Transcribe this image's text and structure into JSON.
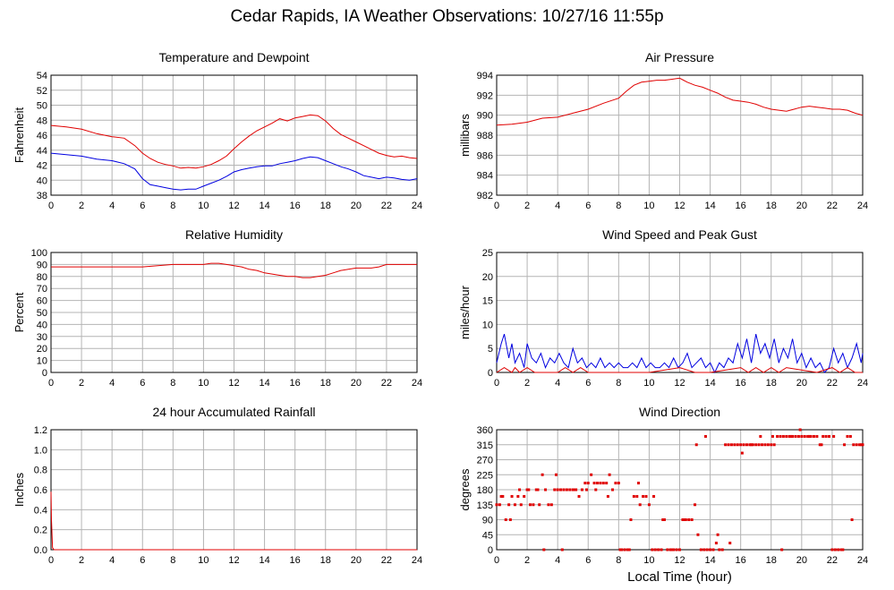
{
  "page": {
    "title": "Cedar Rapids, IA Weather Observations: 10/27/16 11:55p"
  },
  "chart_data": [
    {
      "id": "temperature",
      "type": "line",
      "title": "Temperature and Dewpoint",
      "ylabel": "Fahrenheit",
      "xlabel": "",
      "xlim": [
        0,
        24
      ],
      "ylim": [
        38,
        54
      ],
      "xticks": [
        0,
        2,
        4,
        6,
        8,
        10,
        12,
        14,
        16,
        18,
        20,
        22,
        24
      ],
      "yticks": [
        38,
        40,
        42,
        44,
        46,
        48,
        50,
        52,
        54
      ],
      "grid": true,
      "series": [
        {
          "color": "#e00000",
          "x": [
            0,
            1,
            2,
            3,
            4,
            4.8,
            5.5,
            6,
            6.5,
            7,
            7.5,
            8,
            8.5,
            9,
            9.5,
            10,
            10.5,
            11,
            11.5,
            12,
            12.5,
            13,
            13.5,
            14,
            14.5,
            15,
            15.5,
            16,
            16.5,
            17,
            17.5,
            18,
            18.5,
            19,
            19.5,
            20,
            20.5,
            21,
            21.5,
            22,
            22.5,
            23,
            23.5,
            24
          ],
          "y": [
            47.3,
            47.1,
            46.8,
            46.2,
            45.8,
            45.6,
            44.6,
            43.6,
            42.9,
            42.4,
            42.1,
            41.9,
            41.6,
            41.7,
            41.6,
            41.8,
            42.1,
            42.6,
            43.2,
            44.2,
            45.1,
            45.9,
            46.6,
            47.1,
            47.6,
            48.2,
            47.9,
            48.3,
            48.5,
            48.7,
            48.6,
            47.9,
            46.9,
            46.1,
            45.6,
            45.1,
            44.6,
            44.1,
            43.6,
            43.3,
            43.1,
            43.2,
            43.0,
            42.9
          ]
        },
        {
          "color": "#0000e0",
          "x": [
            0,
            1,
            2,
            3,
            4,
            4.8,
            5.5,
            6,
            6.5,
            7,
            7.5,
            8,
            8.5,
            9,
            9.5,
            10,
            10.5,
            11,
            11.5,
            12,
            12.5,
            13,
            13.5,
            14,
            14.5,
            15,
            15.5,
            16,
            16.5,
            17,
            17.5,
            18,
            18.5,
            19,
            19.5,
            20,
            20.5,
            21,
            21.5,
            22,
            22.5,
            23,
            23.5,
            24
          ],
          "y": [
            43.6,
            43.4,
            43.2,
            42.8,
            42.6,
            42.2,
            41.5,
            40.2,
            39.4,
            39.2,
            39.0,
            38.8,
            38.7,
            38.8,
            38.8,
            39.2,
            39.6,
            40.0,
            40.5,
            41.1,
            41.4,
            41.6,
            41.8,
            41.9,
            41.9,
            42.2,
            42.4,
            42.6,
            42.9,
            43.1,
            43.0,
            42.6,
            42.2,
            41.8,
            41.5,
            41.1,
            40.6,
            40.4,
            40.2,
            40.4,
            40.3,
            40.1,
            40.0,
            40.2
          ]
        }
      ]
    },
    {
      "id": "pressure",
      "type": "line",
      "title": "Air Pressure",
      "ylabel": "millibars",
      "xlabel": "",
      "xlim": [
        0,
        24
      ],
      "ylim": [
        982,
        994
      ],
      "xticks": [
        0,
        2,
        4,
        6,
        8,
        10,
        12,
        14,
        16,
        18,
        20,
        22,
        24
      ],
      "yticks": [
        982,
        984,
        986,
        988,
        990,
        992,
        994
      ],
      "grid": true,
      "series": [
        {
          "color": "#e00000",
          "x": [
            0,
            1,
            2,
            3,
            4,
            5,
            6,
            7,
            8,
            8.5,
            9,
            9.5,
            10,
            10.5,
            11,
            11.5,
            12,
            12.5,
            13,
            13.5,
            14,
            14.5,
            15,
            15.5,
            16,
            16.5,
            17,
            17.5,
            18,
            18.5,
            19,
            19.5,
            20,
            20.5,
            21,
            21.5,
            22,
            22.5,
            23,
            23.5,
            24
          ],
          "y": [
            989.0,
            989.1,
            989.3,
            989.7,
            989.8,
            990.2,
            990.6,
            991.2,
            991.7,
            992.4,
            993.0,
            993.3,
            993.4,
            993.5,
            993.5,
            993.6,
            993.7,
            993.3,
            993.0,
            992.8,
            992.5,
            992.2,
            991.8,
            991.5,
            991.4,
            991.3,
            991.1,
            990.8,
            990.6,
            990.5,
            990.4,
            990.6,
            990.8,
            990.9,
            990.8,
            990.7,
            990.6,
            990.6,
            990.5,
            990.2,
            990.0
          ]
        }
      ]
    },
    {
      "id": "humidity",
      "type": "line",
      "title": "Relative Humidity",
      "ylabel": "Percent",
      "xlabel": "",
      "xlim": [
        0,
        24
      ],
      "ylim": [
        0,
        100
      ],
      "xticks": [
        0,
        2,
        4,
        6,
        8,
        10,
        12,
        14,
        16,
        18,
        20,
        22,
        24
      ],
      "yticks": [
        0,
        10,
        20,
        30,
        40,
        50,
        60,
        70,
        80,
        90,
        100
      ],
      "grid": true,
      "series": [
        {
          "color": "#e00000",
          "x": [
            0,
            1,
            2,
            3,
            4,
            5,
            6,
            7,
            8,
            9,
            10,
            10.5,
            11,
            11.5,
            12,
            12.5,
            13,
            13.5,
            14,
            14.5,
            15,
            15.5,
            16,
            16.5,
            17,
            17.5,
            18,
            18.5,
            19,
            19.5,
            20,
            20.5,
            21,
            21.5,
            22,
            23,
            24
          ],
          "y": [
            88,
            88,
            88,
            88,
            88,
            88,
            88,
            89,
            90,
            90,
            90,
            91,
            91,
            90,
            89,
            88,
            86,
            85,
            83,
            82,
            81,
            80,
            80,
            79,
            79,
            80,
            81,
            83,
            85,
            86,
            87,
            87,
            87,
            88,
            90,
            90,
            90
          ]
        }
      ]
    },
    {
      "id": "wind-speed",
      "type": "line",
      "title": "Wind Speed and Peak Gust",
      "ylabel": "miles/hour",
      "xlabel": "",
      "xlim": [
        0,
        24
      ],
      "ylim": [
        0,
        25
      ],
      "xticks": [
        0,
        2,
        4,
        6,
        8,
        10,
        12,
        14,
        16,
        18,
        20,
        22,
        24
      ],
      "yticks": [
        0,
        5,
        10,
        15,
        20,
        25
      ],
      "grid": true,
      "series": [
        {
          "color": "#0000e0",
          "x": [
            0,
            0.3,
            0.5,
            0.8,
            1,
            1.2,
            1.5,
            1.8,
            2,
            2.3,
            2.6,
            2.9,
            3.2,
            3.5,
            3.8,
            4.1,
            4.4,
            4.7,
            5,
            5.3,
            5.6,
            5.9,
            6.2,
            6.5,
            6.8,
            7.1,
            7.4,
            7.7,
            8,
            8.3,
            8.6,
            8.9,
            9.2,
            9.5,
            9.8,
            10.1,
            10.4,
            10.7,
            11,
            11.3,
            11.6,
            11.9,
            12.2,
            12.5,
            12.8,
            13.1,
            13.4,
            13.7,
            14,
            14.3,
            14.6,
            14.9,
            15.2,
            15.5,
            15.8,
            16.1,
            16.4,
            16.7,
            17,
            17.3,
            17.6,
            17.9,
            18.2,
            18.5,
            18.8,
            19.1,
            19.4,
            19.7,
            20,
            20.3,
            20.6,
            20.9,
            21.2,
            21.5,
            21.8,
            22.1,
            22.4,
            22.7,
            23,
            23.3,
            23.6,
            23.9,
            24
          ],
          "y": [
            2,
            6,
            8,
            3,
            6,
            2,
            4,
            1,
            6,
            3,
            2,
            4,
            1,
            3,
            2,
            4,
            2,
            1,
            5,
            2,
            3,
            1,
            2,
            1,
            3,
            1,
            2,
            1,
            2,
            1,
            1,
            2,
            1,
            3,
            1,
            2,
            1,
            1,
            2,
            1,
            3,
            1,
            2,
            4,
            1,
            2,
            3,
            1,
            2,
            0,
            2,
            1,
            3,
            2,
            6,
            3,
            7,
            2,
            8,
            4,
            6,
            3,
            7,
            2,
            5,
            3,
            7,
            2,
            4,
            1,
            3,
            1,
            2,
            0,
            1,
            5,
            2,
            4,
            1,
            3,
            6,
            2,
            4
          ]
        },
        {
          "color": "#e00000",
          "x": [
            0,
            0.5,
            1,
            1.2,
            1.5,
            2,
            2.5,
            4,
            4.5,
            5,
            5.5,
            6,
            8,
            10,
            12,
            13,
            14,
            16,
            16.5,
            17,
            17.5,
            18,
            18.5,
            19,
            21,
            22,
            22.5,
            23,
            23.5,
            24
          ],
          "y": [
            0,
            1,
            0,
            1,
            0,
            1,
            0,
            0,
            1,
            0,
            1,
            0,
            0,
            0,
            1,
            0,
            0,
            1,
            0,
            1,
            0,
            1,
            0,
            1,
            0,
            1,
            0,
            1,
            0,
            0
          ]
        }
      ]
    },
    {
      "id": "rainfall",
      "type": "line",
      "title": "24 hour Accumulated Rainfall",
      "ylabel": "Inches",
      "xlabel": "",
      "xlim": [
        0,
        24
      ],
      "ylim": [
        0,
        1.2
      ],
      "xticks": [
        0,
        2,
        4,
        6,
        8,
        10,
        12,
        14,
        16,
        18,
        20,
        22,
        24
      ],
      "yticks": [
        0.0,
        0.2,
        0.4,
        0.6,
        0.8,
        1.0,
        1.2
      ],
      "ytick_labels": [
        "0.0",
        "0.2",
        "0.4",
        "0.6",
        "0.8",
        "1.0",
        "1.2"
      ],
      "grid": true,
      "series": [
        {
          "color": "#e00000",
          "x": [
            0,
            0.03,
            0.1,
            0.2,
            24
          ],
          "y": [
            0.58,
            0.3,
            0.02,
            0.0,
            0.0
          ]
        }
      ]
    },
    {
      "id": "wind-direction",
      "type": "scatter",
      "title": "Wind Direction",
      "ylabel": "degrees",
      "xlabel": "Local Time (hour)",
      "xlim": [
        0,
        24
      ],
      "ylim": [
        0,
        360
      ],
      "xticks": [
        0,
        2,
        4,
        6,
        8,
        10,
        12,
        14,
        16,
        18,
        20,
        22,
        24
      ],
      "yticks": [
        0,
        45,
        90,
        135,
        180,
        225,
        270,
        315,
        360
      ],
      "grid": true,
      "series": [
        {
          "color": "#e00000",
          "x": [
            0,
            0.2,
            0.4,
            0.6,
            0.8,
            1.0,
            1.2,
            1.4,
            1.6,
            1.8,
            2.0,
            2.2,
            2.4,
            2.6,
            2.8,
            3.0,
            3.2,
            3.4,
            3.6,
            3.8,
            4.0,
            4.2,
            4.4,
            4.6,
            4.8,
            5.0,
            5.2,
            5.4,
            5.6,
            5.8,
            6.0,
            6.2,
            6.4,
            6.6,
            6.8,
            7.0,
            7.2,
            7.4,
            7.6,
            7.8,
            8.0,
            8.2,
            8.4,
            8.6,
            8.8,
            9.0,
            9.2,
            9.4,
            9.6,
            9.8,
            10.0,
            10.2,
            10.4,
            10.6,
            10.8,
            11.0,
            11.2,
            11.4,
            11.6,
            11.8,
            12.0,
            12.2,
            12.4,
            12.6,
            12.8,
            13.0,
            13.2,
            13.4,
            13.6,
            13.8,
            14.0,
            14.2,
            14.4,
            14.6,
            14.8,
            15.0,
            15.2,
            15.4,
            15.6,
            15.8,
            16.0,
            16.2,
            16.4,
            16.6,
            16.8,
            17.0,
            17.2,
            17.4,
            17.6,
            17.8,
            18.0,
            18.2,
            18.4,
            18.6,
            18.8,
            19.0,
            19.2,
            19.4,
            19.6,
            19.8,
            20.0,
            20.2,
            20.4,
            20.6,
            20.8,
            21.0,
            21.2,
            21.4,
            21.6,
            21.8,
            22.0,
            22.2,
            22.4,
            22.6,
            22.8,
            23.0,
            23.2,
            23.4,
            23.6,
            23.8,
            24.0,
            0.3,
            0.9,
            1.5,
            2.1,
            2.7,
            3.1,
            3.9,
            4.3,
            5.1,
            5.9,
            6.5,
            7.3,
            8.1,
            8.7,
            9.3,
            10.3,
            10.9,
            11.5,
            12.3,
            13.1,
            13.7,
            14.5,
            15.3,
            16.1,
            16.7,
            17.3,
            18.1,
            18.7,
            19.3,
            19.9,
            20.5,
            21.3,
            22.1,
            22.7,
            23.3,
            23.9
          ],
          "y": [
            135,
            135,
            160,
            90,
            135,
            160,
            135,
            160,
            135,
            160,
            180,
            135,
            135,
            180,
            135,
            225,
            180,
            135,
            135,
            180,
            180,
            180,
            180,
            180,
            180,
            180,
            180,
            160,
            180,
            200,
            200,
            225,
            200,
            200,
            200,
            200,
            200,
            225,
            180,
            200,
            200,
            0,
            0,
            0,
            90,
            160,
            160,
            135,
            160,
            160,
            135,
            0,
            0,
            0,
            0,
            90,
            0,
            0,
            0,
            0,
            0,
            90,
            90,
            90,
            90,
            135,
            45,
            0,
            0,
            0,
            0,
            0,
            20,
            0,
            0,
            315,
            315,
            315,
            315,
            315,
            315,
            315,
            315,
            315,
            315,
            315,
            315,
            315,
            315,
            315,
            315,
            315,
            340,
            340,
            340,
            340,
            340,
            340,
            340,
            340,
            340,
            340,
            340,
            340,
            340,
            340,
            315,
            340,
            340,
            340,
            0,
            0,
            0,
            0,
            315,
            340,
            340,
            315,
            315,
            315,
            315,
            160,
            90,
            180,
            180,
            180,
            0,
            225,
            0,
            180,
            180,
            180,
            160,
            0,
            0,
            200,
            160,
            90,
            0,
            90,
            315,
            340,
            45,
            20,
            290,
            315,
            340,
            340,
            0,
            340,
            360,
            340,
            315,
            340,
            0,
            90,
            315
          ]
        }
      ]
    }
  ]
}
